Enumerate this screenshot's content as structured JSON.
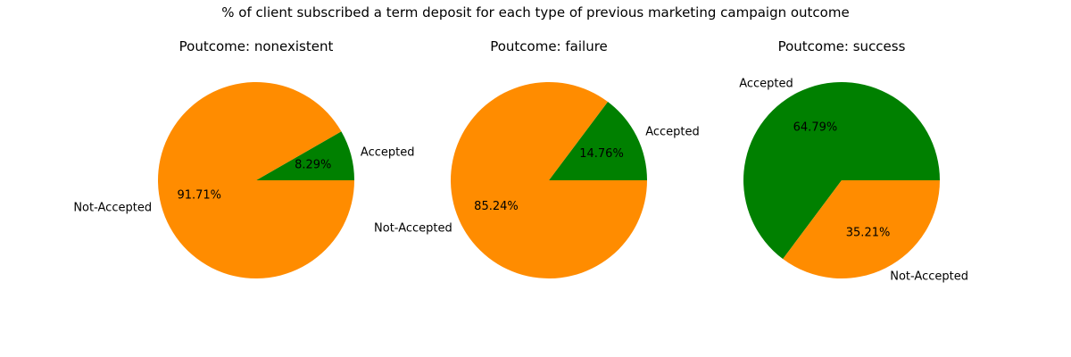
{
  "figure": {
    "suptitle": "% of client subscribed a term deposit for each type of previous marketing campaign outcome"
  },
  "colors": {
    "accepted": "#008000",
    "not_accepted": "#ff8c00"
  },
  "chart_data": [
    {
      "type": "pie",
      "title": "Poutcome: nonexistent",
      "slices": [
        {
          "label": "Accepted",
          "value": 8.29,
          "display": "8.29%",
          "color": "#008000"
        },
        {
          "label": "Not-Accepted",
          "value": 91.71,
          "display": "91.71%",
          "color": "#ff8c00"
        }
      ]
    },
    {
      "type": "pie",
      "title": "Poutcome: failure",
      "slices": [
        {
          "label": "Accepted",
          "value": 14.76,
          "display": "14.76%",
          "color": "#008000"
        },
        {
          "label": "Not-Accepted",
          "value": 85.24,
          "display": "85.24%",
          "color": "#ff8c00"
        }
      ]
    },
    {
      "type": "pie",
      "title": "Poutcome: success",
      "slices": [
        {
          "label": "Accepted",
          "value": 64.79,
          "display": "64.79%",
          "color": "#008000"
        },
        {
          "label": "Not-Accepted",
          "value": 35.21,
          "display": "35.21%",
          "color": "#ff8c00"
        }
      ]
    }
  ]
}
